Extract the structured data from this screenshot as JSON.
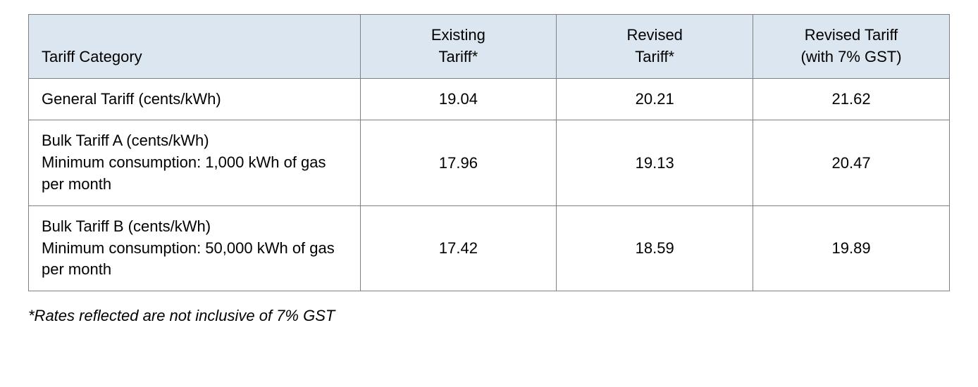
{
  "table": {
    "header_background": "#dce6f0",
    "border_color": "#808080",
    "text_color": "#000000",
    "font_size": 22,
    "column_widths_percent": [
      36,
      21.33,
      21.33,
      21.34
    ],
    "columns": [
      "Tariff Category",
      "Existing\nTariff*",
      "Revised\nTariff*",
      "Revised Tariff\n(with 7% GST)"
    ],
    "rows": [
      {
        "category": "General Tariff (cents/kWh)",
        "existing": "19.04",
        "revised": "20.21",
        "revised_gst": "21.62"
      },
      {
        "category": "Bulk Tariff A (cents/kWh)\nMinimum consumption: 1,000 kWh of gas per month",
        "existing": "17.96",
        "revised": "19.13",
        "revised_gst": "20.47"
      },
      {
        "category": "Bulk Tariff B (cents/kWh)\nMinimum consumption: 50,000 kWh of gas per month",
        "existing": "17.42",
        "revised": "18.59",
        "revised_gst": "19.89"
      }
    ]
  },
  "footnote": "*Rates reflected are not inclusive of 7% GST"
}
